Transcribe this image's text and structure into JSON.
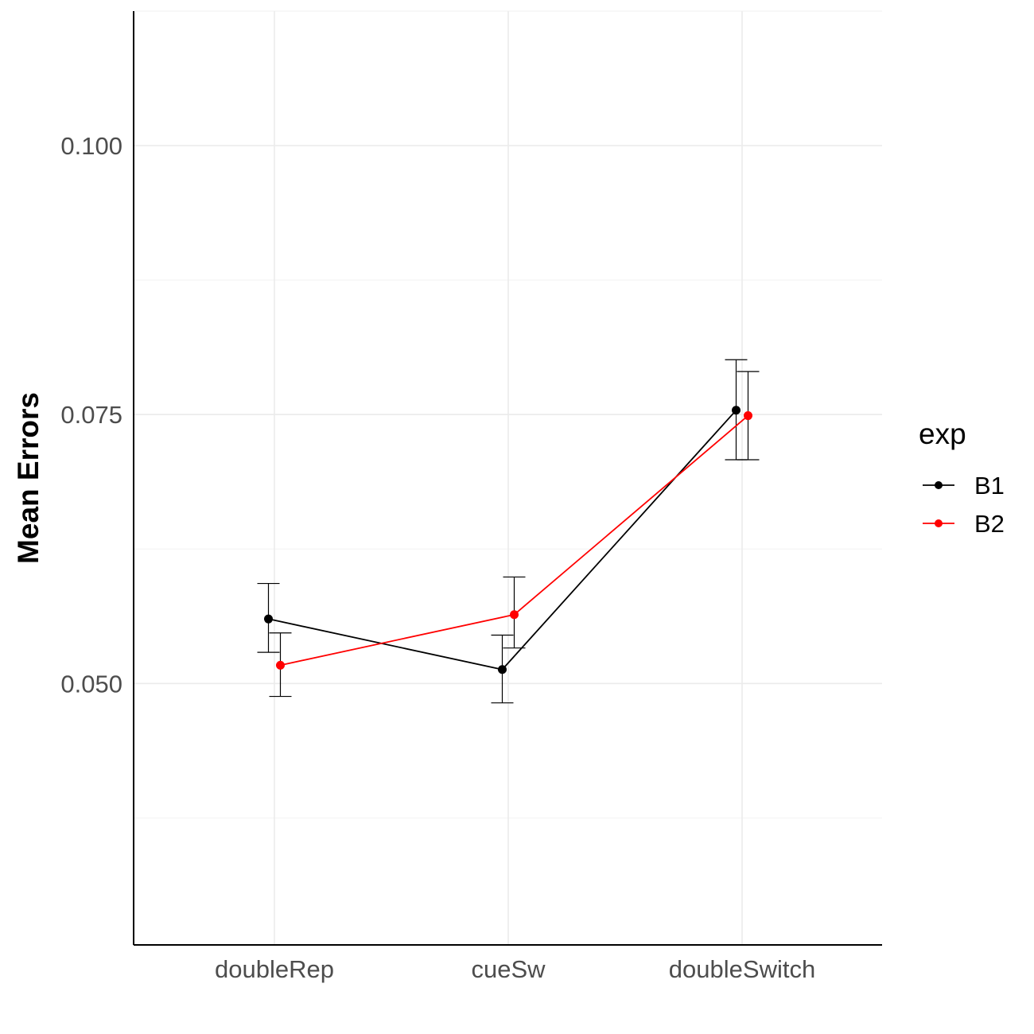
{
  "chart_data": {
    "type": "line",
    "categories": [
      "doubleRep",
      "cueSw",
      "doubleSwitch"
    ],
    "ylabel": "Mean Errors",
    "ylim": [
      0.0257,
      0.1125
    ],
    "yticks": [
      0.05,
      0.075,
      0.1
    ],
    "ytick_labels": [
      "0.050",
      "0.075",
      "0.100"
    ],
    "grid": true,
    "legend": {
      "title": "exp",
      "position": "right"
    },
    "series": [
      {
        "name": "B1",
        "color": "#000000",
        "values": [
          0.056,
          0.0513,
          0.0754
        ],
        "error_low": [
          0.0529,
          0.0482,
          0.0708
        ],
        "error_high": [
          0.0593,
          0.0545,
          0.0801
        ]
      },
      {
        "name": "B2",
        "color": "#ff0000",
        "values": [
          0.0517,
          0.0564,
          0.0749
        ],
        "error_low": [
          0.0488,
          0.0533,
          0.0708
        ],
        "error_high": [
          0.0547,
          0.0599,
          0.079
        ]
      }
    ]
  }
}
